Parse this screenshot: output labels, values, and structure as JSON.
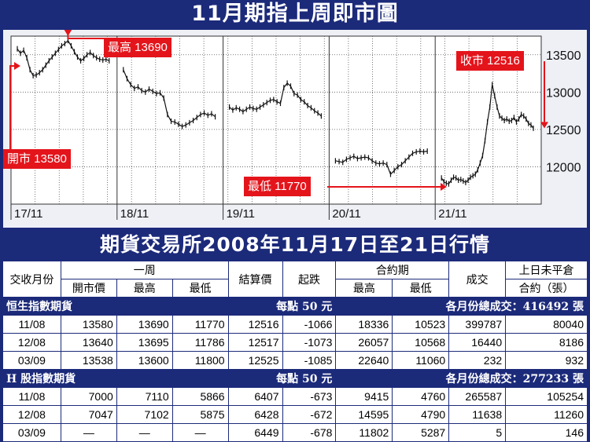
{
  "title": "11月期指上周即市圖",
  "subtitle": "期貨交易所2008年11月17日至21日行情",
  "chart_data": {
    "type": "line",
    "ylim": [
      11500,
      13750
    ],
    "yticks": [
      12000,
      12500,
      13000,
      13500
    ],
    "ytick_labels": [
      "12000",
      "12500",
      "13000",
      "13500"
    ],
    "day_labels": [
      "17/11",
      "18/11",
      "19/11",
      "20/11",
      "21/11"
    ],
    "days": [
      [
        13580,
        13520,
        13560,
        13460,
        13300,
        13220,
        13230,
        13260,
        13300,
        13360,
        13420,
        13470,
        13520,
        13570,
        13620,
        13650,
        13690,
        13620,
        13540,
        13470,
        13420,
        13450,
        13500,
        13530,
        13490,
        13460,
        13440,
        13430,
        13440,
        13420
      ],
      [
        13300,
        13180,
        13100,
        13050,
        13070,
        13020,
        13000,
        13040,
        13010,
        12980,
        12990,
        12920,
        12700,
        12610,
        12600,
        12570,
        12540,
        12560,
        12590,
        12620,
        12660,
        12700,
        12720,
        12690,
        12710,
        12670
      ],
      [
        12800,
        12760,
        12790,
        12770,
        12740,
        12770,
        12800,
        12780,
        12770,
        12800,
        12830,
        12860,
        12890,
        12900,
        12870,
        12850,
        13060,
        13120,
        13080,
        12980,
        12960,
        12900,
        12870,
        12820,
        12790,
        12750,
        12720,
        12680
      ],
      [
        12080,
        12070,
        12060,
        12100,
        12120,
        12140,
        12110,
        12120,
        12130,
        12120,
        12080,
        12050,
        12040,
        12050,
        12030,
        11900,
        11950,
        12000,
        12030,
        12080,
        12130,
        12180,
        12200,
        12210,
        12200,
        12210
      ],
      [
        11850,
        11800,
        11780,
        11770,
        11820,
        11860,
        11850,
        11820,
        11830,
        11810,
        11790,
        11820,
        11860,
        11880,
        11900,
        11960,
        12050,
        12150,
        12350,
        12600,
        12800,
        13100,
        12950,
        12800,
        12680,
        12650,
        12620,
        12640,
        12610,
        12620,
        12660,
        12600,
        12640,
        12700,
        12680,
        12640,
        12580,
        12560,
        12516
      ]
    ]
  },
  "callouts": {
    "high": "最高 13690",
    "open": "開市 13580",
    "low": "最低 11770",
    "close": "收市 12516"
  },
  "table": {
    "header1": [
      "交收月份",
      "一周",
      "結算價",
      "起跌",
      "合約期",
      "成交",
      "上日未平倉"
    ],
    "header2": [
      "開市價",
      "最高",
      "最低",
      "最高",
      "最低",
      "合約（張）"
    ],
    "sections": [
      {
        "name": "恒生指數期貨",
        "per_point": "每點 50 元",
        "total": "各月份總成交：416492 張",
        "rows": [
          [
            "11/08",
            "13580",
            "13690",
            "11770",
            "12516",
            "-1066",
            "18336",
            "10523",
            "399787",
            "80040"
          ],
          [
            "12/08",
            "13640",
            "13695",
            "11786",
            "12517",
            "-1073",
            "26057",
            "10568",
            "16440",
            "8186"
          ],
          [
            "03/09",
            "13538",
            "13600",
            "11800",
            "12525",
            "-1085",
            "22640",
            "11060",
            "232",
            "932"
          ]
        ]
      },
      {
        "name": "H 股指數期貨",
        "per_point": "每點 50 元",
        "total": "各月份總成交：277233 張",
        "rows": [
          [
            "11/08",
            "7000",
            "7110",
            "5866",
            "6407",
            "-673",
            "9415",
            "4760",
            "265587",
            "105254"
          ],
          [
            "12/08",
            "7047",
            "7102",
            "5875",
            "6428",
            "-672",
            "14595",
            "4790",
            "11638",
            "11260"
          ],
          [
            "03/09",
            "—",
            "—",
            "—",
            "6449",
            "-678",
            "11802",
            "5287",
            "5",
            "146"
          ]
        ]
      }
    ]
  }
}
